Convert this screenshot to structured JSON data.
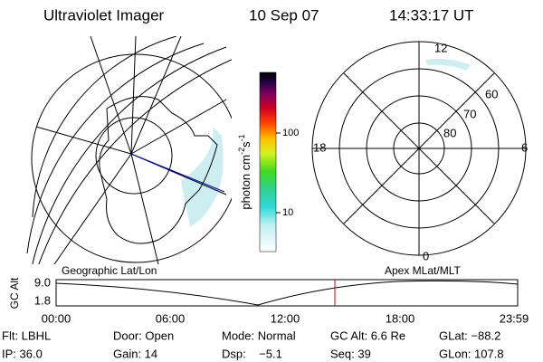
{
  "header": {
    "title": "Ultraviolet Imager",
    "date": "10 Sep 07",
    "time": "14:33:17 UT"
  },
  "colorbar": {
    "ticks": [
      "100",
      "10"
    ],
    "label": [
      "photon cm",
      "-2",
      "s",
      "-1"
    ]
  },
  "polar": {
    "mlt_labels": [
      "12",
      "18",
      "6",
      "0"
    ],
    "lat_labels": [
      "60",
      "70",
      "80"
    ]
  },
  "altitude_plot": {
    "left_title": "Geographic Lat/Lon",
    "right_title": "Apex MLat/MLT",
    "y_label": "GC Alt",
    "y_ticks": [
      "9.0",
      "1.8"
    ],
    "x_ticks": [
      "00:00",
      "06:00",
      "12:00",
      "18:00",
      "23:59"
    ]
  },
  "footer": {
    "rows": [
      [
        "Flt: LBHL",
        "Door: Open",
        "Mode: Normal",
        "GC Alt: 6.6 Re",
        "GLat: −88.2"
      ],
      [
        "IP: 36.0",
        "Gain: 14",
        "Dsp:    −5.1",
        "Seq: 39",
        "GLon: 107.8"
      ]
    ]
  }
}
